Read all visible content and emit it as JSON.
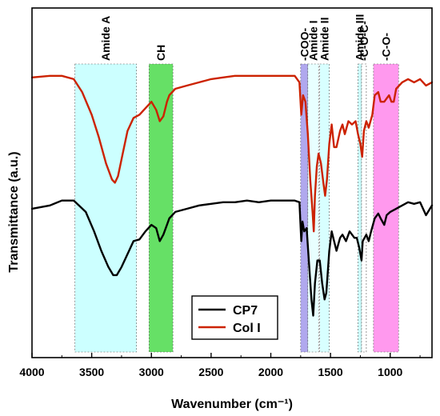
{
  "chart_data": {
    "type": "line",
    "xlabel": "Wavenumber (cm⁻¹)",
    "ylabel": "Transmittance (a.u.)",
    "xlim": [
      4000,
      650
    ],
    "x_ticks": [
      4000,
      3500,
      3000,
      2500,
      2000,
      1500,
      1000
    ],
    "x_reversed": true,
    "y_tick_labels_shown": false,
    "ylim": [
      0,
      1
    ],
    "legend_position": "bottom-center",
    "bands": [
      {
        "label": "Amide A",
        "from": 3640,
        "to": 3125,
        "color": "#ccffff"
      },
      {
        "label": "CH",
        "from": 3020,
        "to": 2820,
        "color": "#66e066"
      },
      {
        "label": "-COO-",
        "from": 1750,
        "to": 1690,
        "color": "#b0a8ee"
      },
      {
        "label": "Amide I",
        "from": 1690,
        "to": 1600,
        "color": "#e8ffff"
      },
      {
        "label": "Amide II",
        "from": 1590,
        "to": 1510,
        "color": "#d8ffff"
      },
      {
        "label": "Amide III",
        "from": 1270,
        "to": 1240,
        "color": "#ccffff"
      },
      {
        "label": "-C-O-C-",
        "from": 1240,
        "to": 1200,
        "color": "#ffffff"
      },
      {
        "label": "-C-O-",
        "from": 1140,
        "to": 930,
        "color": "#ff99ee"
      }
    ],
    "series": [
      {
        "name": "CP7",
        "color": "#000000",
        "points": [
          [
            4000,
            0.43
          ],
          [
            3850,
            0.44
          ],
          [
            3750,
            0.455
          ],
          [
            3650,
            0.455
          ],
          [
            3550,
            0.42
          ],
          [
            3480,
            0.36
          ],
          [
            3420,
            0.3
          ],
          [
            3360,
            0.25
          ],
          [
            3320,
            0.225
          ],
          [
            3290,
            0.225
          ],
          [
            3250,
            0.25
          ],
          [
            3200,
            0.29
          ],
          [
            3150,
            0.33
          ],
          [
            3100,
            0.335
          ],
          [
            3050,
            0.36
          ],
          [
            3000,
            0.38
          ],
          [
            2960,
            0.37
          ],
          [
            2930,
            0.33
          ],
          [
            2900,
            0.35
          ],
          [
            2870,
            0.38
          ],
          [
            2850,
            0.4
          ],
          [
            2800,
            0.42
          ],
          [
            2700,
            0.43
          ],
          [
            2600,
            0.44
          ],
          [
            2500,
            0.445
          ],
          [
            2400,
            0.45
          ],
          [
            2300,
            0.45
          ],
          [
            2200,
            0.455
          ],
          [
            2100,
            0.45
          ],
          [
            2000,
            0.455
          ],
          [
            1900,
            0.455
          ],
          [
            1800,
            0.455
          ],
          [
            1760,
            0.45
          ],
          [
            1745,
            0.33
          ],
          [
            1735,
            0.39
          ],
          [
            1720,
            0.36
          ],
          [
            1700,
            0.37
          ],
          [
            1680,
            0.26
          ],
          [
            1660,
            0.15
          ],
          [
            1645,
            0.1
          ],
          [
            1630,
            0.2
          ],
          [
            1610,
            0.27
          ],
          [
            1590,
            0.27
          ],
          [
            1570,
            0.2
          ],
          [
            1550,
            0.15
          ],
          [
            1535,
            0.17
          ],
          [
            1510,
            0.3
          ],
          [
            1490,
            0.36
          ],
          [
            1470,
            0.33
          ],
          [
            1450,
            0.3
          ],
          [
            1420,
            0.34
          ],
          [
            1400,
            0.35
          ],
          [
            1370,
            0.33
          ],
          [
            1340,
            0.36
          ],
          [
            1300,
            0.34
          ],
          [
            1280,
            0.34
          ],
          [
            1260,
            0.31
          ],
          [
            1240,
            0.27
          ],
          [
            1230,
            0.33
          ],
          [
            1200,
            0.35
          ],
          [
            1180,
            0.33
          ],
          [
            1160,
            0.36
          ],
          [
            1130,
            0.4
          ],
          [
            1100,
            0.415
          ],
          [
            1080,
            0.4
          ],
          [
            1050,
            0.38
          ],
          [
            1030,
            0.41
          ],
          [
            1000,
            0.42
          ],
          [
            950,
            0.43
          ],
          [
            900,
            0.44
          ],
          [
            850,
            0.45
          ],
          [
            800,
            0.445
          ],
          [
            750,
            0.45
          ],
          [
            700,
            0.41
          ],
          [
            650,
            0.44
          ]
        ]
      },
      {
        "name": "Col I",
        "color": "#cc2200",
        "points": [
          [
            4000,
            0.835
          ],
          [
            3850,
            0.84
          ],
          [
            3750,
            0.84
          ],
          [
            3650,
            0.83
          ],
          [
            3580,
            0.79
          ],
          [
            3500,
            0.72
          ],
          [
            3440,
            0.65
          ],
          [
            3380,
            0.57
          ],
          [
            3330,
            0.52
          ],
          [
            3305,
            0.51
          ],
          [
            3280,
            0.53
          ],
          [
            3240,
            0.6
          ],
          [
            3200,
            0.67
          ],
          [
            3150,
            0.71
          ],
          [
            3100,
            0.72
          ],
          [
            3050,
            0.74
          ],
          [
            3000,
            0.76
          ],
          [
            2960,
            0.735
          ],
          [
            2930,
            0.7
          ],
          [
            2900,
            0.715
          ],
          [
            2870,
            0.76
          ],
          [
            2850,
            0.78
          ],
          [
            2800,
            0.8
          ],
          [
            2700,
            0.81
          ],
          [
            2600,
            0.82
          ],
          [
            2500,
            0.83
          ],
          [
            2400,
            0.835
          ],
          [
            2300,
            0.84
          ],
          [
            2200,
            0.84
          ],
          [
            2100,
            0.84
          ],
          [
            2000,
            0.84
          ],
          [
            1900,
            0.84
          ],
          [
            1800,
            0.84
          ],
          [
            1760,
            0.82
          ],
          [
            1745,
            0.72
          ],
          [
            1730,
            0.78
          ],
          [
            1710,
            0.76
          ],
          [
            1690,
            0.66
          ],
          [
            1670,
            0.52
          ],
          [
            1650,
            0.42
          ],
          [
            1640,
            0.36
          ],
          [
            1630,
            0.47
          ],
          [
            1615,
            0.56
          ],
          [
            1600,
            0.6
          ],
          [
            1580,
            0.57
          ],
          [
            1560,
            0.51
          ],
          [
            1545,
            0.47
          ],
          [
            1530,
            0.52
          ],
          [
            1510,
            0.63
          ],
          [
            1490,
            0.69
          ],
          [
            1470,
            0.62
          ],
          [
            1450,
            0.62
          ],
          [
            1420,
            0.67
          ],
          [
            1400,
            0.69
          ],
          [
            1380,
            0.66
          ],
          [
            1350,
            0.7
          ],
          [
            1320,
            0.69
          ],
          [
            1290,
            0.7
          ],
          [
            1270,
            0.66
          ],
          [
            1250,
            0.63
          ],
          [
            1235,
            0.59
          ],
          [
            1220,
            0.67
          ],
          [
            1200,
            0.7
          ],
          [
            1180,
            0.68
          ],
          [
            1150,
            0.72
          ],
          [
            1130,
            0.78
          ],
          [
            1100,
            0.79
          ],
          [
            1080,
            0.76
          ],
          [
            1050,
            0.76
          ],
          [
            1030,
            0.77
          ],
          [
            1010,
            0.78
          ],
          [
            990,
            0.76
          ],
          [
            970,
            0.76
          ],
          [
            950,
            0.8
          ],
          [
            900,
            0.82
          ],
          [
            850,
            0.83
          ],
          [
            800,
            0.82
          ],
          [
            750,
            0.83
          ],
          [
            700,
            0.81
          ],
          [
            650,
            0.82
          ]
        ]
      }
    ]
  }
}
